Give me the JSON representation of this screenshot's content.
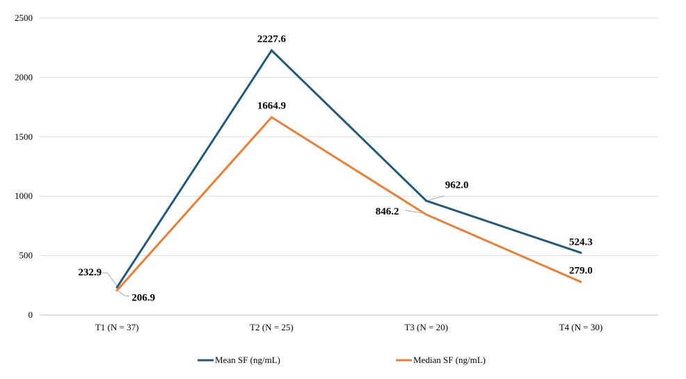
{
  "chart_data": {
    "type": "line",
    "categories": [
      "T1 (N = 37)",
      "T2 (N = 25)",
      "T3 (N = 20)",
      "T4 (N = 30)"
    ],
    "series": [
      {
        "name": "Mean SF (ng/mL)",
        "color": "#1f5a7a",
        "values": [
          232.9,
          2227.6,
          962.0,
          524.3
        ],
        "labels": [
          "232.9",
          "2227.6",
          "962.0",
          "524.3"
        ]
      },
      {
        "name": "Median SF (ng/mL)",
        "color": "#ed7d31",
        "values": [
          206.9,
          1664.9,
          846.2,
          279.0
        ],
        "labels": [
          "206.9",
          "1664.9",
          "846.2",
          "279.0"
        ]
      }
    ],
    "yticks": [
      "0",
      "500",
      "1000",
      "1500",
      "2000",
      "2500"
    ],
    "ylim": [
      0,
      2500
    ],
    "grid": true,
    "legend": "bottom",
    "title": "",
    "xlabel": "",
    "ylabel": ""
  }
}
